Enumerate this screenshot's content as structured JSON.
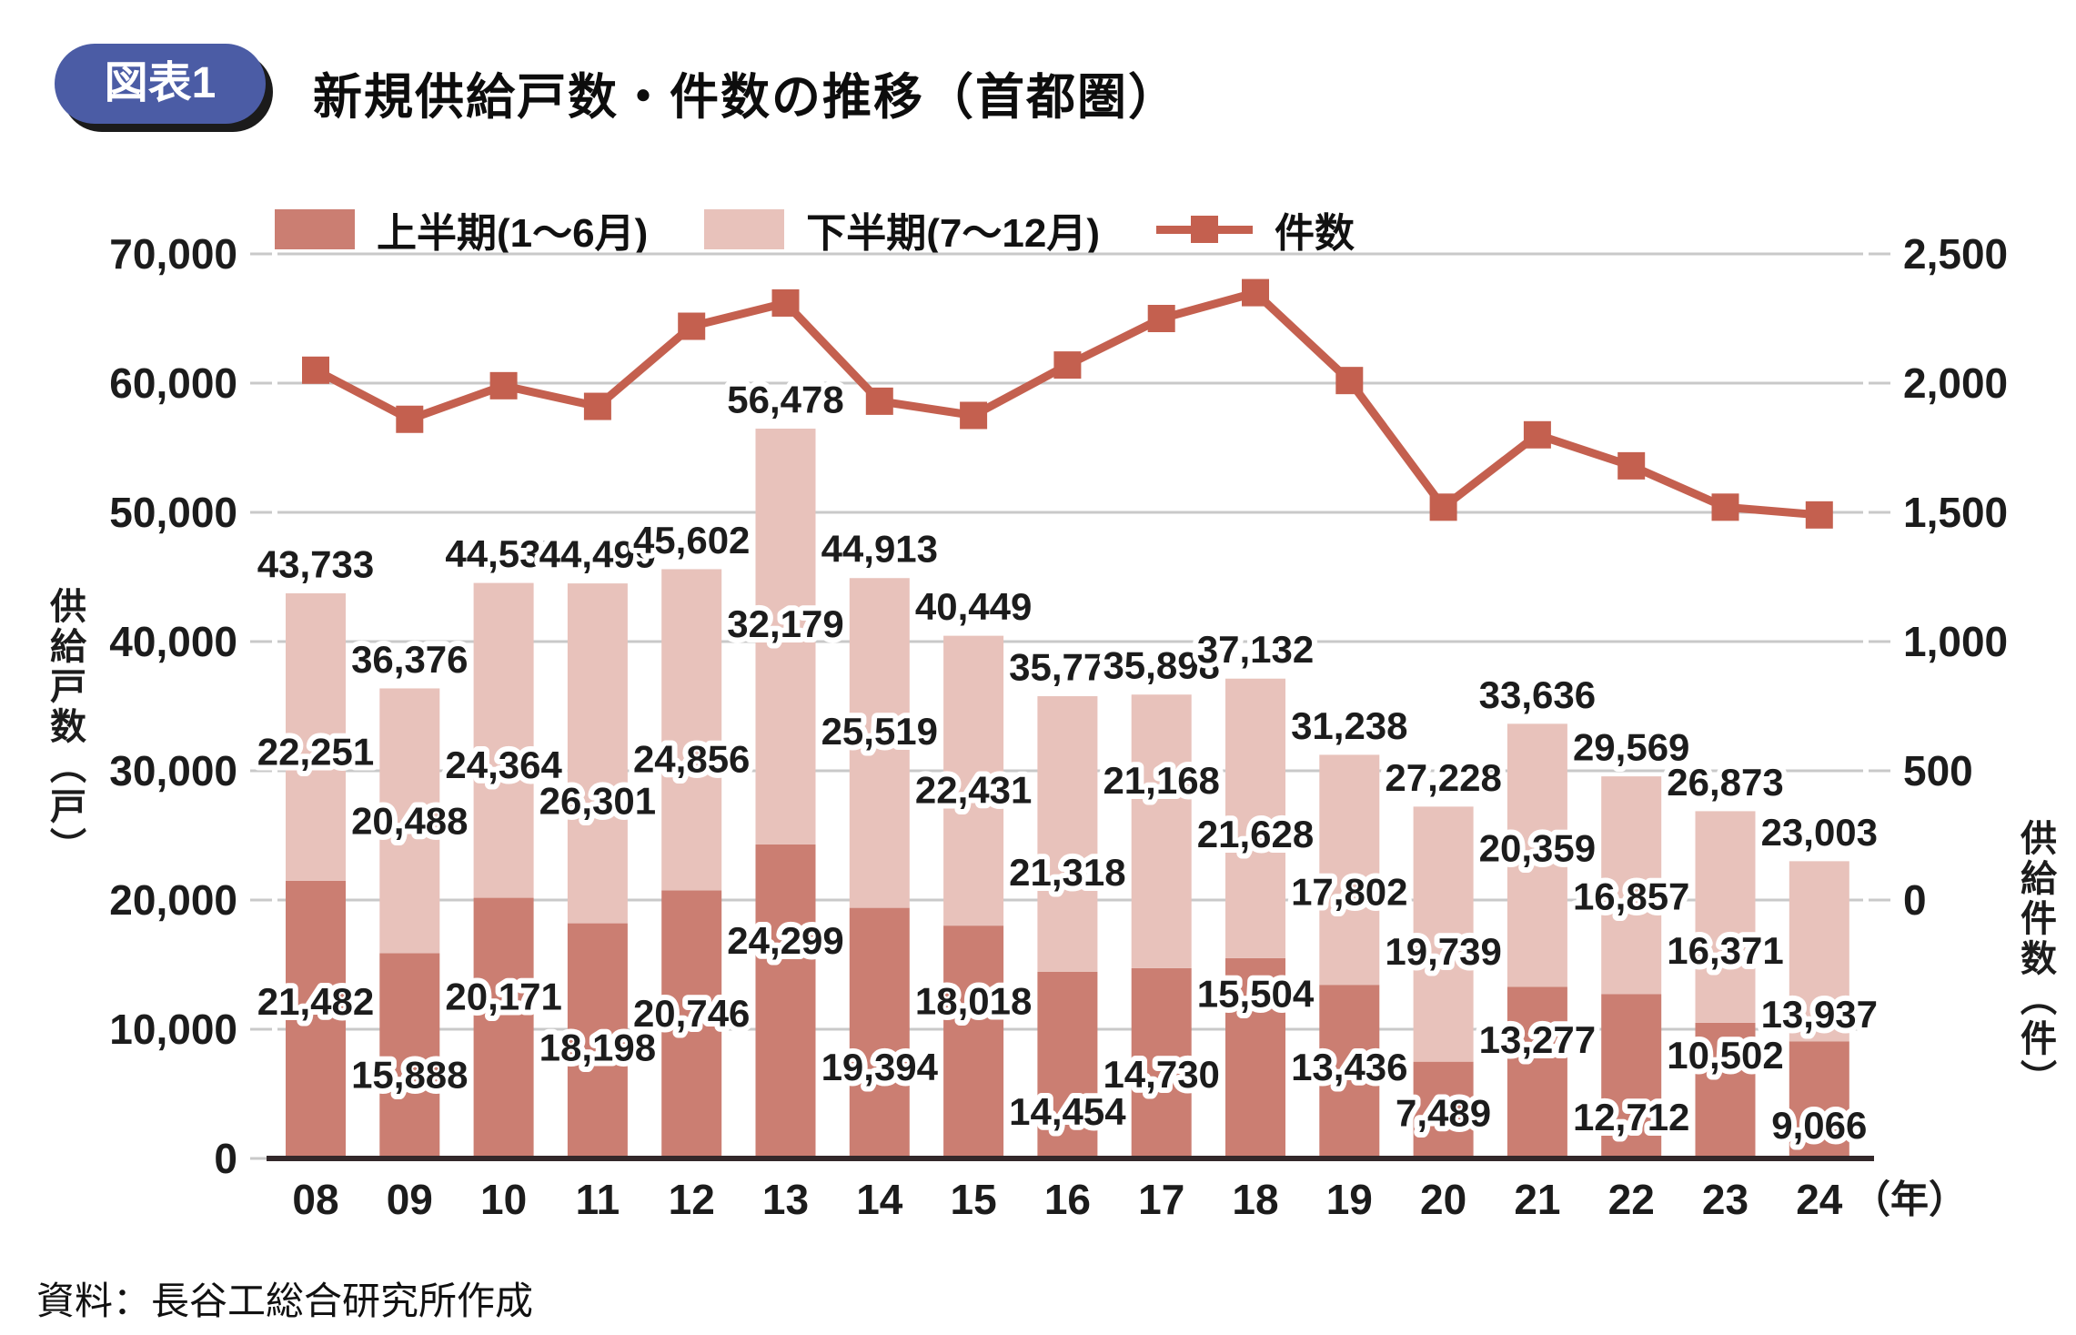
{
  "figure_badge": "図表1",
  "title": "新規供給戸数・件数の推移（首都圏）",
  "source": "資料：長谷工総合研究所作成",
  "colors": {
    "first_half_bar": "#cb7e72",
    "second_half_bar": "#e8c2bb",
    "line": "#c4604f",
    "grid": "#c9c9c9",
    "axis_line": "#33282a",
    "badge_bg": "#4b5ca5",
    "label_text": "#1c1c1c"
  },
  "legend": {
    "first_half": "上半期(1～6月)",
    "second_half": "下半期(7～12月)",
    "line": "件数"
  },
  "axes": {
    "y_left": {
      "title": "供給戸数（戸）",
      "min": 0,
      "max": 70000,
      "tick_step": 10000,
      "tick_labels": [
        "0",
        "10,000",
        "20,000",
        "30,000",
        "40,000",
        "50,000",
        "60,000",
        "70,000"
      ]
    },
    "y_right": {
      "title": "供給件数（件）",
      "min": 0,
      "max": 2500,
      "tick_step": 500,
      "tick_labels": [
        "0",
        "500",
        "1,000",
        "1,500",
        "2,000",
        "2,500"
      ],
      "alignment_note": "right 2,500 aligns with left 70,000 gridline; right 0 aligns with left 20,000 gridline"
    },
    "x": {
      "unit_suffix": "（年）"
    }
  },
  "chart_data": {
    "type": "bar",
    "subtype": "stacked bars (left axis) + line with square markers (right axis)",
    "grid": true,
    "legend_position": "top",
    "categories": [
      "08",
      "09",
      "10",
      "11",
      "12",
      "13",
      "14",
      "15",
      "16",
      "17",
      "18",
      "19",
      "20",
      "21",
      "22",
      "23",
      "24"
    ],
    "series": [
      {
        "name": "上半期(1～6月)",
        "type": "bar-stack",
        "axis": "left",
        "values": [
          21482,
          15888,
          20171,
          18198,
          20746,
          24299,
          19394,
          18018,
          14454,
          14730,
          15504,
          13436,
          7489,
          13277,
          12712,
          10502,
          9066
        ]
      },
      {
        "name": "下半期(7～12月)",
        "type": "bar-stack",
        "axis": "left",
        "values": [
          22251,
          20488,
          24364,
          26301,
          24856,
          32179,
          25519,
          22431,
          21318,
          21168,
          21628,
          17802,
          19739,
          20359,
          16857,
          16371,
          13937
        ]
      },
      {
        "name": "件数",
        "type": "line",
        "axis": "right",
        "values_estimated_from_pixels": true,
        "values": [
          2050,
          1860,
          1990,
          1910,
          2220,
          2310,
          1930,
          1875,
          2070,
          2250,
          2350,
          2010,
          1520,
          1800,
          1680,
          1520,
          1490
        ]
      }
    ],
    "totals": [
      43733,
      36376,
      44535,
      44499,
      45602,
      56478,
      44913,
      40449,
      35772,
      35898,
      37132,
      31238,
      27228,
      33636,
      29569,
      26873,
      23003
    ],
    "ylim_left": [
      0,
      70000
    ],
    "ylim_right": [
      0,
      2500
    ]
  }
}
